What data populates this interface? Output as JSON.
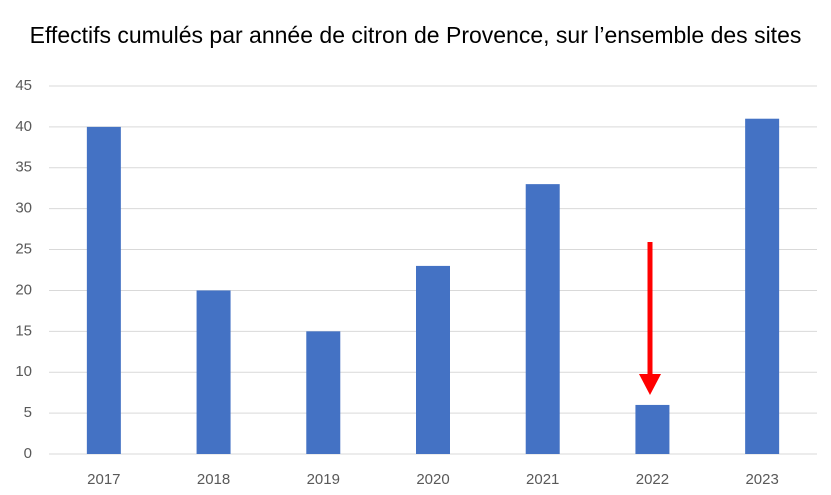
{
  "chart_data": {
    "type": "bar",
    "title": "Effectifs cumulés par année de citron de Provence, sur l’ensemble des sites",
    "categories": [
      "2017",
      "2018",
      "2019",
      "2020",
      "2021",
      "2022",
      "2023"
    ],
    "values": [
      40,
      20,
      15,
      23,
      33,
      6,
      41
    ],
    "color": "#4472c4",
    "ylim": [
      0,
      45
    ],
    "yticks": [
      0,
      5,
      10,
      15,
      20,
      25,
      30,
      35,
      40,
      45
    ],
    "grid": true
  }
}
